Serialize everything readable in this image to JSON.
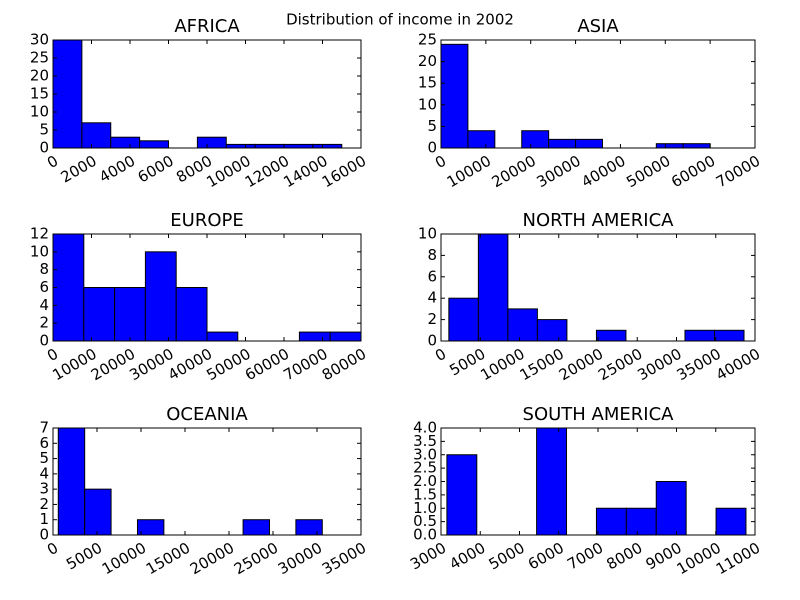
{
  "title": "Distribution of income in 2002",
  "chart_data": [
    {
      "type": "histogram",
      "title": "AFRICA",
      "color": "#0000ff",
      "bins": [
        0,
        1500,
        3000,
        4500,
        6000,
        7500,
        9000,
        10500,
        12000,
        13500,
        15000
      ],
      "values": [
        30,
        7,
        3,
        2,
        0,
        3,
        1,
        1,
        1,
        1
      ],
      "xlim": [
        0,
        16000
      ],
      "xticks": [
        0,
        2000,
        4000,
        6000,
        8000,
        10000,
        12000,
        14000,
        16000
      ],
      "ylim": [
        0,
        30
      ],
      "yticks": [
        0,
        5,
        10,
        15,
        20,
        25,
        30
      ]
    },
    {
      "type": "histogram",
      "title": "ASIA",
      "color": "#0000ff",
      "bins": [
        0,
        6000,
        12000,
        18000,
        24000,
        30000,
        36000,
        42000,
        48000,
        54000,
        60000
      ],
      "values": [
        24,
        4,
        0,
        4,
        2,
        2,
        0,
        0,
        1,
        1
      ],
      "xlim": [
        0,
        70000
      ],
      "xticks": [
        0,
        10000,
        20000,
        30000,
        40000,
        50000,
        60000,
        70000
      ],
      "ylim": [
        0,
        25
      ],
      "yticks": [
        0,
        5,
        10,
        15,
        20,
        25
      ]
    },
    {
      "type": "histogram",
      "title": "EUROPE",
      "color": "#0000ff",
      "bins": [
        0,
        8000,
        16000,
        24000,
        32000,
        40000,
        48000,
        56000,
        64000,
        72000,
        80000
      ],
      "values": [
        12,
        6,
        6,
        10,
        6,
        1,
        0,
        0,
        1,
        1
      ],
      "xlim": [
        0,
        80000
      ],
      "xticks": [
        0,
        10000,
        20000,
        30000,
        40000,
        50000,
        60000,
        70000,
        80000
      ],
      "ylim": [
        0,
        12
      ],
      "yticks": [
        0,
        2,
        4,
        6,
        8,
        10,
        12
      ]
    },
    {
      "type": "histogram",
      "title": "NORTH AMERICA",
      "color": "#0000ff",
      "bins": [
        1000,
        4760,
        8520,
        12280,
        16040,
        19800,
        23560,
        27320,
        31080,
        34840,
        38600
      ],
      "values": [
        4,
        10,
        3,
        2,
        0,
        1,
        0,
        0,
        1,
        1
      ],
      "xlim": [
        0,
        40000
      ],
      "xticks": [
        0,
        5000,
        10000,
        15000,
        20000,
        25000,
        30000,
        35000,
        40000
      ],
      "ylim": [
        0,
        10
      ],
      "yticks": [
        0,
        2,
        4,
        6,
        8,
        10
      ]
    },
    {
      "type": "histogram",
      "title": "OCEANIA",
      "color": "#0000ff",
      "bins": [
        600,
        3600,
        6600,
        9600,
        12600,
        15600,
        18600,
        21600,
        24600,
        27600,
        30600
      ],
      "values": [
        7,
        3,
        0,
        1,
        0,
        0,
        0,
        1,
        0,
        1
      ],
      "xlim": [
        0,
        35000
      ],
      "xticks": [
        0,
        5000,
        10000,
        15000,
        20000,
        25000,
        30000,
        35000
      ],
      "ylim": [
        0,
        7
      ],
      "yticks": [
        0,
        1,
        2,
        3,
        4,
        5,
        6,
        7
      ]
    },
    {
      "type": "histogram",
      "title": "SOUTH AMERICA",
      "color": "#0000ff",
      "bins": [
        3150,
        3912,
        4674,
        5436,
        6198,
        6960,
        7722,
        8484,
        9246,
        10008,
        10770
      ],
      "values": [
        3,
        0,
        0,
        4,
        0,
        1,
        1,
        2,
        0,
        1
      ],
      "xlim": [
        3000,
        11000
      ],
      "xticks": [
        3000,
        4000,
        5000,
        6000,
        7000,
        8000,
        9000,
        10000,
        11000
      ],
      "ylim": [
        0,
        4
      ],
      "yticks": [
        {
          "value": 0,
          "label": "0.0"
        },
        0.5,
        {
          "value": 1,
          "label": "1.0"
        },
        1.5,
        {
          "value": 2,
          "label": "2.0"
        },
        2.5,
        {
          "value": 3,
          "label": "3.0"
        },
        3.5,
        {
          "value": 4,
          "label": "4.0"
        }
      ]
    }
  ]
}
